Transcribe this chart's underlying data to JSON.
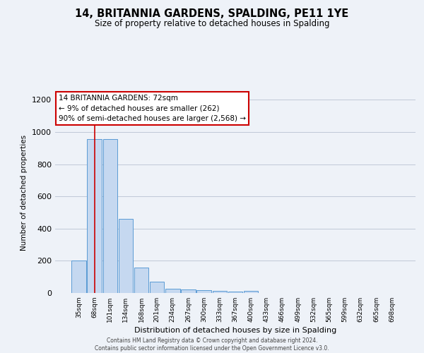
{
  "title": "14, BRITANNIA GARDENS, SPALDING, PE11 1YE",
  "subtitle": "Size of property relative to detached houses in Spalding",
  "xlabel": "Distribution of detached houses by size in Spalding",
  "ylabel": "Number of detached properties",
  "categories": [
    "35sqm",
    "68sqm",
    "101sqm",
    "134sqm",
    "168sqm",
    "201sqm",
    "234sqm",
    "267sqm",
    "300sqm",
    "333sqm",
    "367sqm",
    "400sqm",
    "433sqm",
    "466sqm",
    "499sqm",
    "532sqm",
    "565sqm",
    "599sqm",
    "632sqm",
    "665sqm",
    "698sqm"
  ],
  "values": [
    200,
    955,
    955,
    460,
    160,
    70,
    25,
    20,
    18,
    12,
    10,
    12,
    0,
    0,
    0,
    0,
    0,
    0,
    0,
    0,
    0
  ],
  "bar_color": "#c5d8f0",
  "bar_edge_color": "#5b9bd5",
  "background_color": "#eef2f8",
  "grid_color": "#c0c8d8",
  "annotation_text": "14 BRITANNIA GARDENS: 72sqm\n← 9% of detached houses are smaller (262)\n90% of semi-detached houses are larger (2,568) →",
  "annotation_box_color": "white",
  "annotation_box_edge_color": "#cc0000",
  "vline_color": "#cc0000",
  "ylim": [
    0,
    1250
  ],
  "yticks": [
    0,
    200,
    400,
    600,
    800,
    1000,
    1200
  ],
  "footer": "Contains HM Land Registry data © Crown copyright and database right 2024.\nContains public sector information licensed under the Open Government Licence v3.0."
}
